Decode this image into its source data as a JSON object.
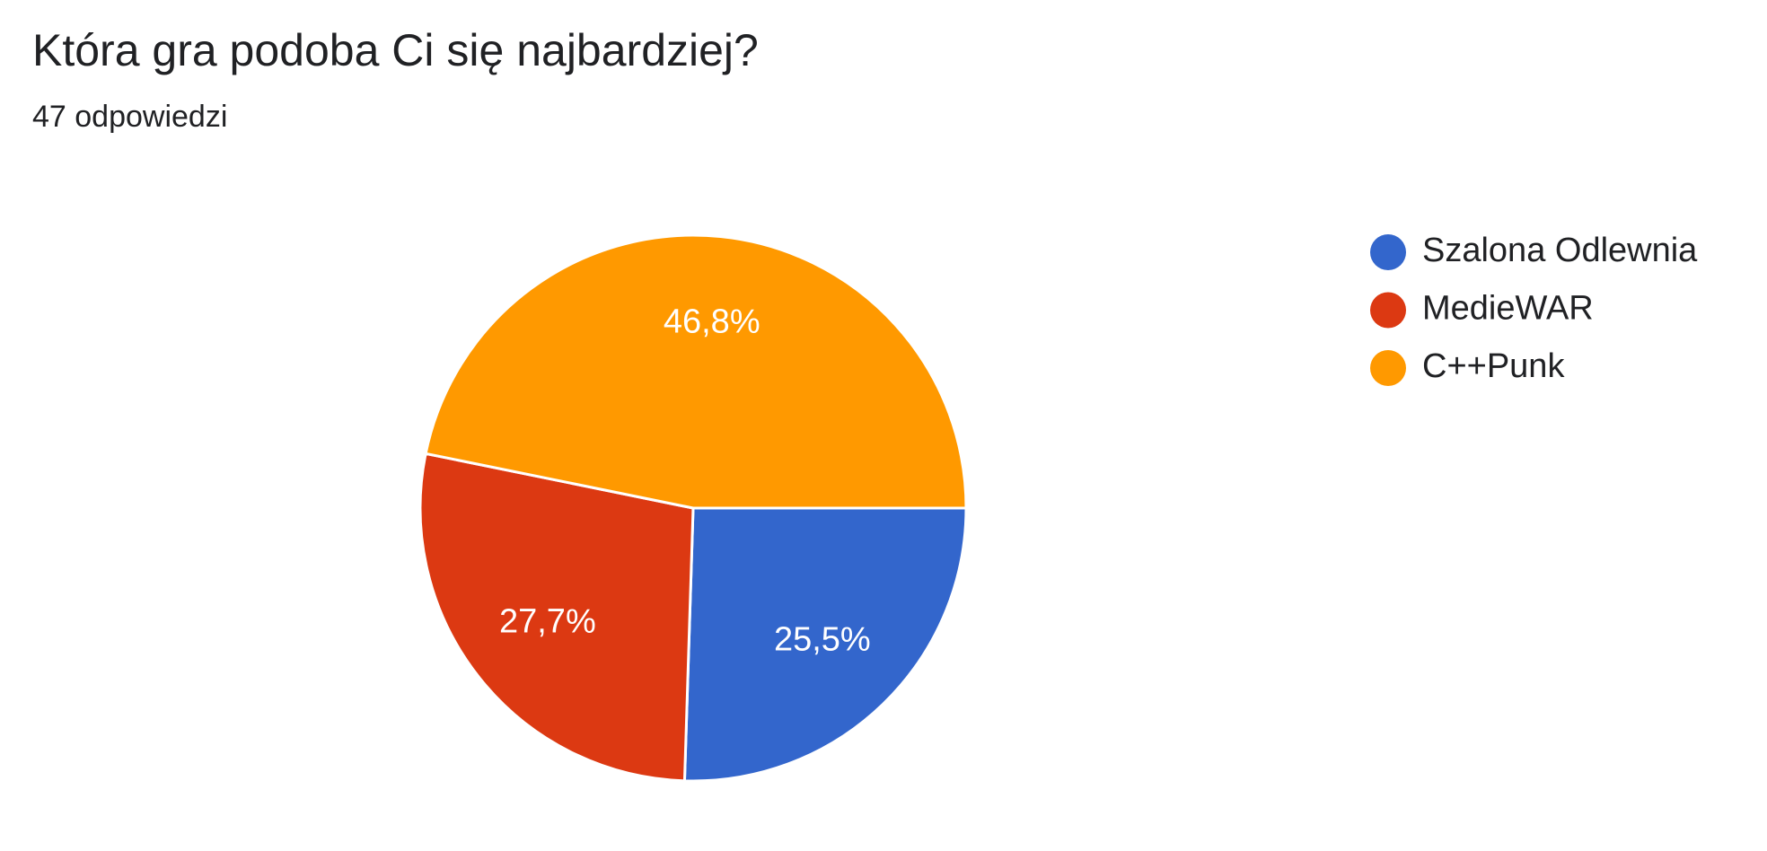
{
  "chart_data": {
    "type": "pie",
    "title": "Która gra podoba Ci się najbardziej?",
    "subtitle": "47 odpowiedzi",
    "categories": [
      "Szalona Odlewnia",
      "MedieWAR",
      "C++Punk"
    ],
    "values": [
      25.5,
      27.7,
      46.8
    ],
    "value_labels": [
      "25,5%",
      "27,7%",
      "46,8%"
    ],
    "colors": [
      "#3366cc",
      "#dc3912",
      "#ff9900"
    ],
    "legend": "right"
  }
}
